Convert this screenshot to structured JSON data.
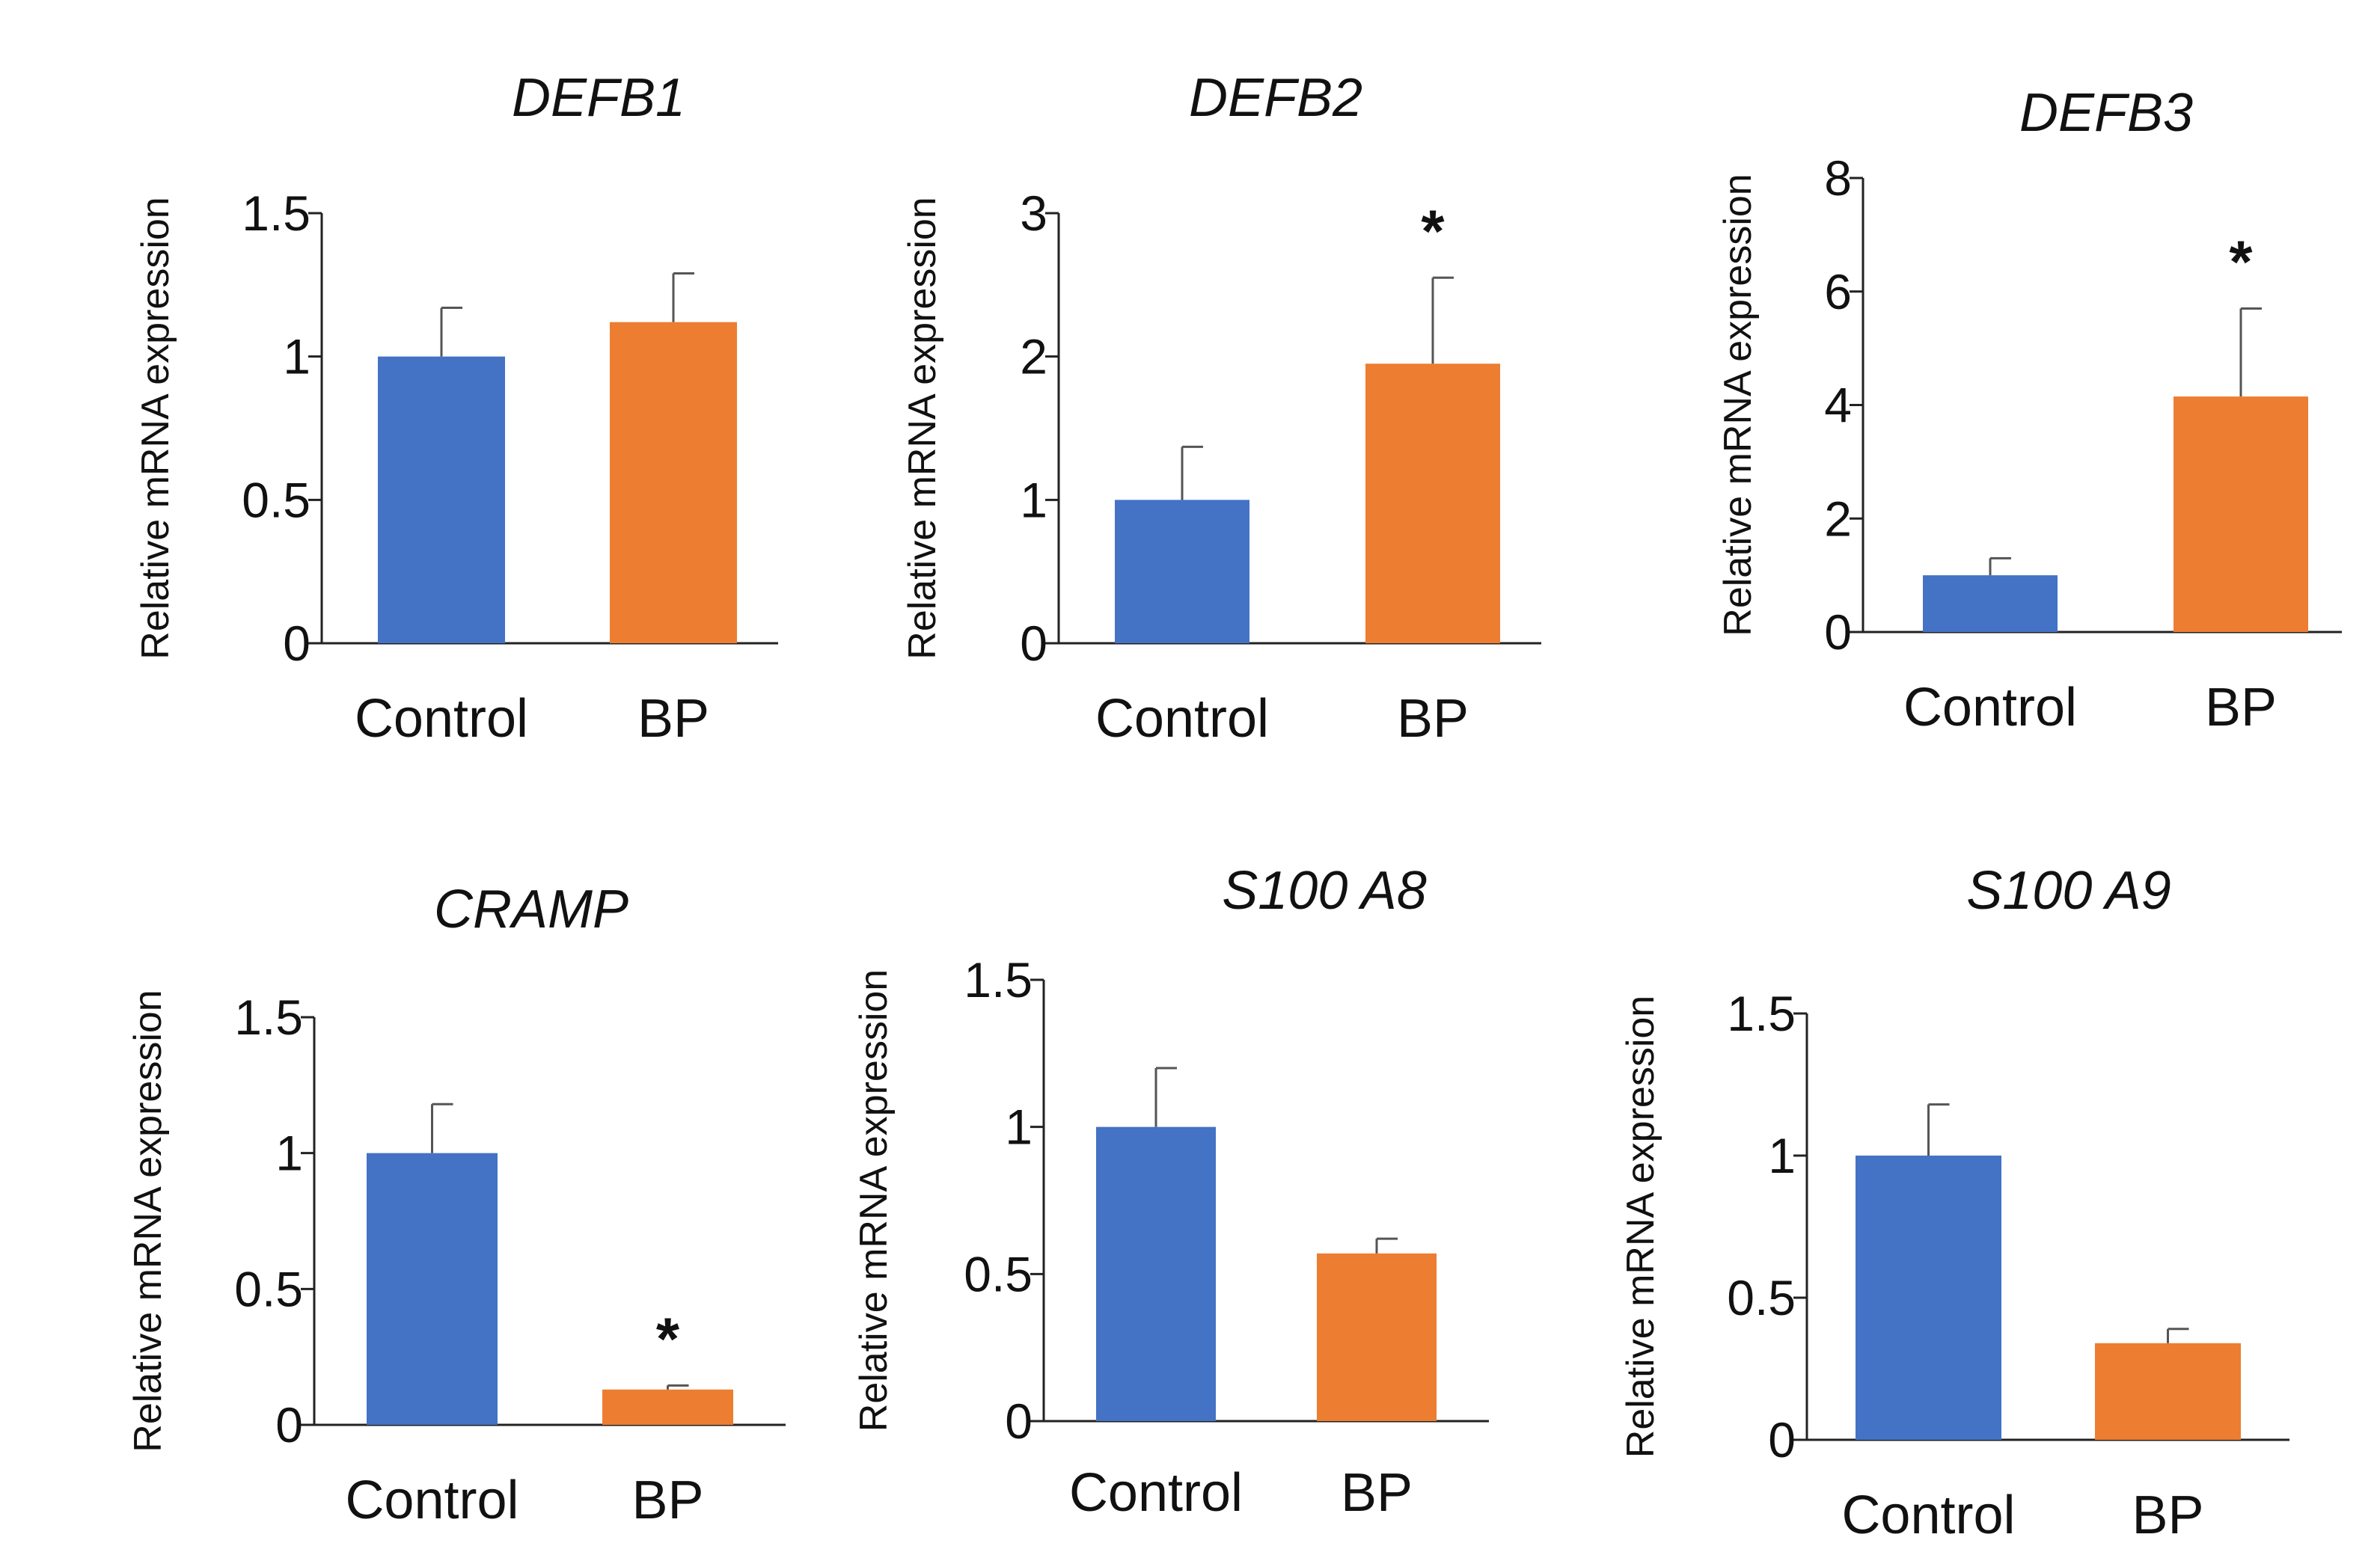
{
  "colors": {
    "control": "#4472C4",
    "bp": "#ED7D31",
    "axis": "#222222"
  },
  "chart_data": [
    {
      "type": "bar",
      "title": "DEFB1",
      "ylabel": "Relative mRNA expression",
      "xlabel": "",
      "categories": [
        "Control",
        "BP"
      ],
      "values": [
        1.0,
        1.12
      ],
      "errors": [
        0.17,
        0.17
      ],
      "significance": [
        "",
        ""
      ],
      "ylim": [
        0,
        1.5
      ],
      "yticks": [
        0,
        0.5,
        1,
        1.5
      ],
      "ytick_labels": [
        "0",
        "0.5",
        "1",
        "1.5"
      ]
    },
    {
      "type": "bar",
      "title": "DEFB2",
      "ylabel": "Relative mRNA expression",
      "xlabel": "",
      "categories": [
        "Control",
        "BP"
      ],
      "values": [
        1.0,
        1.95
      ],
      "errors": [
        0.37,
        0.6
      ],
      "significance": [
        "",
        "*"
      ],
      "ylim": [
        0,
        3
      ],
      "yticks": [
        0,
        1,
        2,
        3
      ],
      "ytick_labels": [
        "0",
        "1",
        "2",
        "3"
      ]
    },
    {
      "type": "bar",
      "title": "DEFB3",
      "ylabel": "Relative mRNA expression",
      "xlabel": "",
      "categories": [
        "Control",
        "BP"
      ],
      "values": [
        1.0,
        4.15
      ],
      "errors": [
        0.3,
        1.55
      ],
      "significance": [
        "",
        "*"
      ],
      "ylim": [
        0,
        8
      ],
      "yticks": [
        0,
        2,
        4,
        6,
        8
      ],
      "ytick_labels": [
        "0",
        "2",
        "4",
        "6",
        "8"
      ]
    },
    {
      "type": "bar",
      "title": "CRAMP",
      "ylabel": "Relative mRNA expression",
      "xlabel": "",
      "categories": [
        "Control",
        "BP"
      ],
      "values": [
        1.0,
        0.13
      ],
      "errors": [
        0.18,
        0.015
      ],
      "significance": [
        "",
        "*"
      ],
      "ylim": [
        0,
        1.5
      ],
      "yticks": [
        0,
        0.5,
        1,
        1.5
      ],
      "ytick_labels": [
        "0",
        "0.5",
        "1",
        "1.5"
      ]
    },
    {
      "type": "bar",
      "title": "S100 A8",
      "ylabel": "Relative mRNA expression",
      "xlabel": "",
      "categories": [
        "Control",
        "BP"
      ],
      "values": [
        1.0,
        0.57
      ],
      "errors": [
        0.2,
        0.05
      ],
      "significance": [
        "",
        ""
      ],
      "ylim": [
        0,
        1.5
      ],
      "yticks": [
        0,
        0.5,
        1,
        1.5
      ],
      "ytick_labels": [
        "0",
        "0.5",
        "1",
        "1.5"
      ]
    },
    {
      "type": "bar",
      "title": "S100 A9",
      "ylabel": "Relative mRNA expression",
      "xlabel": "",
      "categories": [
        "Control",
        "BP"
      ],
      "values": [
        1.0,
        0.34
      ],
      "errors": [
        0.18,
        0.05
      ],
      "significance": [
        "",
        ""
      ],
      "ylim": [
        0,
        1.5
      ],
      "yticks": [
        0,
        0.5,
        1,
        1.5
      ],
      "ytick_labels": [
        "0",
        "0.5",
        "1",
        "1.5"
      ]
    }
  ]
}
